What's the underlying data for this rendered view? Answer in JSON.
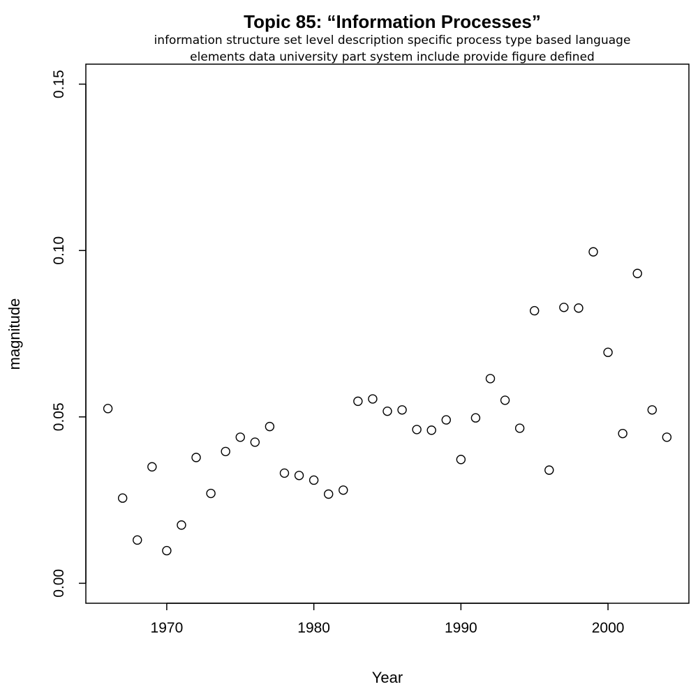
{
  "chart_data": {
    "type": "scatter",
    "title": "Topic 85: “Information Processes”",
    "subtitle_lines": [
      "information structure set level description specific process type based language",
      "elements data university part system include provide figure defined"
    ],
    "xlabel": "Year",
    "ylabel": "magnitude",
    "xlim": [
      1964.5,
      2005.5
    ],
    "ylim": [
      -0.006,
      0.156
    ],
    "xticks": [
      1970,
      1980,
      1990,
      2000
    ],
    "yticks": [
      0.0,
      0.05,
      0.1,
      0.15
    ],
    "xtick_labels": [
      "1970",
      "1980",
      "1990",
      "2000"
    ],
    "ytick_labels": [
      "0.00",
      "0.05",
      "0.10",
      "0.15"
    ],
    "grid": false,
    "marker": "open-circle",
    "points": [
      [
        1966,
        0.0525
      ],
      [
        1967,
        0.0256
      ],
      [
        1968,
        0.013
      ],
      [
        1969,
        0.035
      ],
      [
        1970,
        0.0098
      ],
      [
        1971,
        0.0175
      ],
      [
        1972,
        0.0378
      ],
      [
        1973,
        0.027
      ],
      [
        1974,
        0.0396
      ],
      [
        1975,
        0.0439
      ],
      [
        1976,
        0.0424
      ],
      [
        1977,
        0.0471
      ],
      [
        1978,
        0.0331
      ],
      [
        1979,
        0.0324
      ],
      [
        1980,
        0.031
      ],
      [
        1981,
        0.0268
      ],
      [
        1982,
        0.028
      ],
      [
        1983,
        0.0547
      ],
      [
        1984,
        0.0554
      ],
      [
        1985,
        0.0517
      ],
      [
        1986,
        0.0521
      ],
      [
        1987,
        0.0462
      ],
      [
        1988,
        0.046
      ],
      [
        1989,
        0.0491
      ],
      [
        1990,
        0.0372
      ],
      [
        1991,
        0.0497
      ],
      [
        1992,
        0.0615
      ],
      [
        1993,
        0.055
      ],
      [
        1994,
        0.0466
      ],
      [
        1995,
        0.0819
      ],
      [
        1996,
        0.034
      ],
      [
        1997,
        0.0829
      ],
      [
        1998,
        0.0827
      ],
      [
        1999,
        0.0996
      ],
      [
        2000,
        0.0694
      ],
      [
        2001,
        0.045
      ],
      [
        2002,
        0.0931
      ],
      [
        2003,
        0.0521
      ],
      [
        2004,
        0.0439
      ]
    ]
  }
}
